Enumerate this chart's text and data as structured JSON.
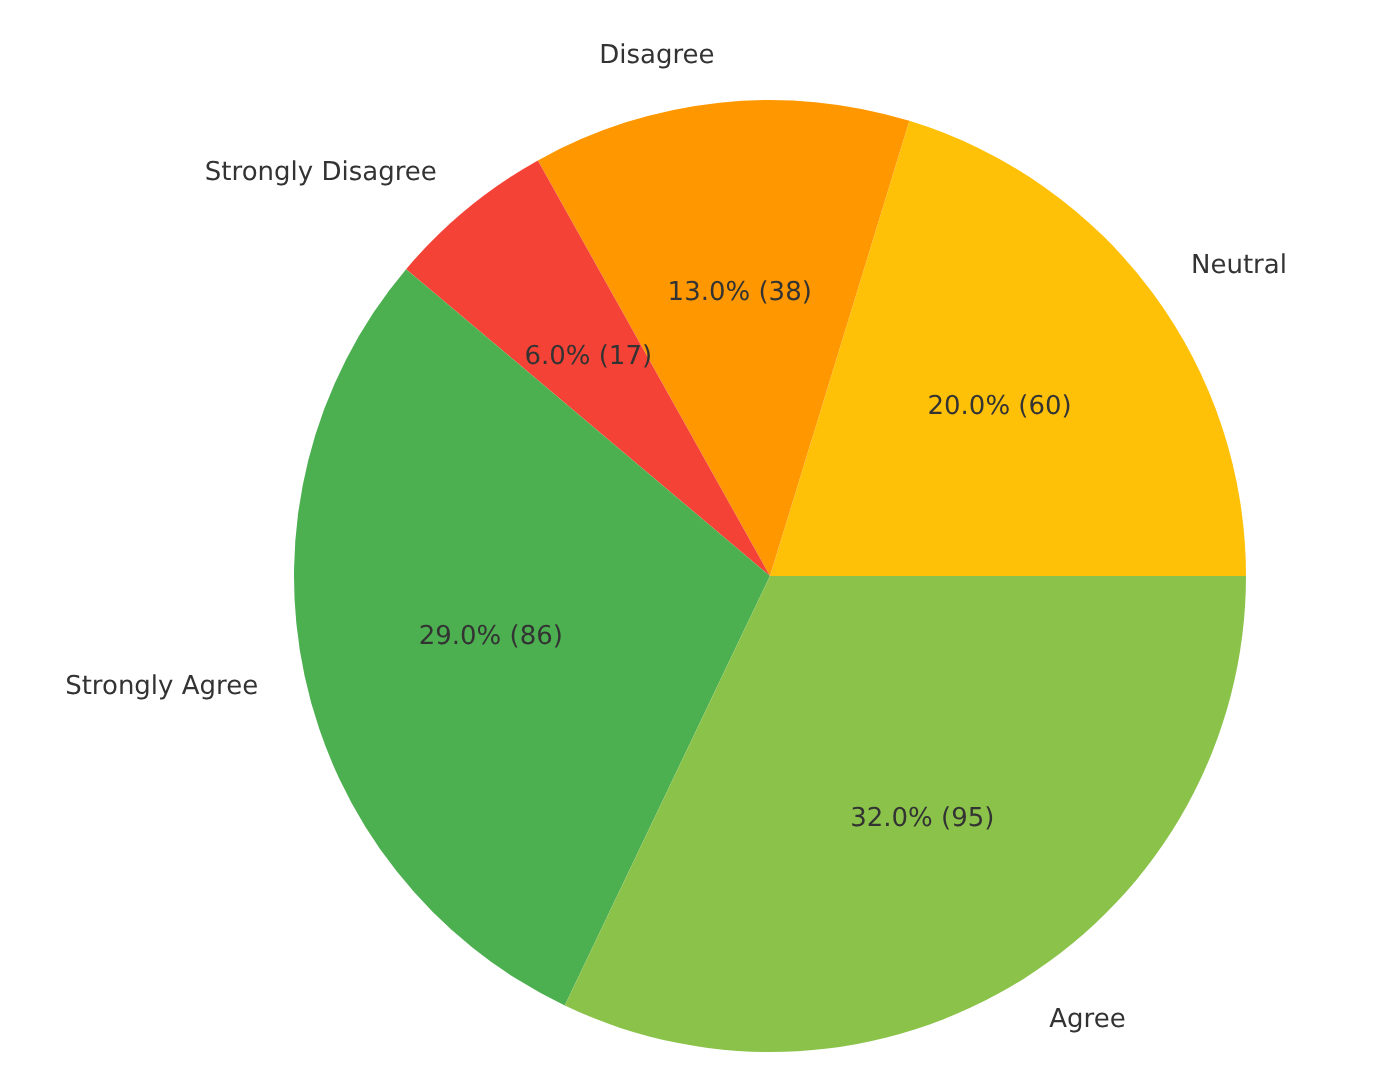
{
  "chart_data": {
    "type": "pie",
    "categories": [
      "Neutral",
      "Disagree",
      "Strongly Disagree",
      "Strongly Agree",
      "Agree"
    ],
    "values": [
      60,
      38,
      17,
      86,
      95
    ],
    "colors": [
      "#ffc107",
      "#ff9800",
      "#f44336",
      "#4caf50",
      "#8bc34a"
    ],
    "value_labels": [
      "20.0% (60)",
      "13.0% (38)",
      "6.0% (17)",
      "29.0% (86)",
      "32.0% (95)"
    ]
  }
}
